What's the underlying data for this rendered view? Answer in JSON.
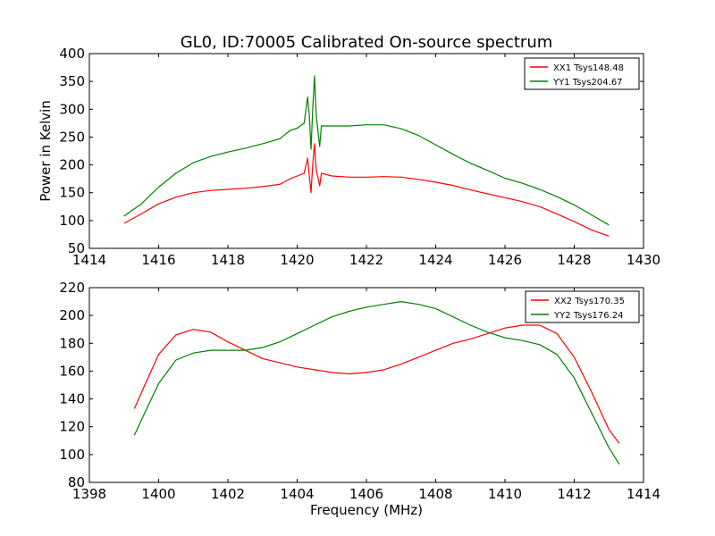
{
  "figure": {
    "title": "GL0, ID:70005 Calibrated On-source spectrum"
  },
  "chart_data": [
    {
      "type": "line",
      "title": "GL0, ID:70005 Calibrated On-source spectrum",
      "xlabel": "",
      "ylabel": "Power in Kelvin",
      "xlim": [
        1414,
        1430
      ],
      "ylim": [
        50,
        400
      ],
      "xticks": [
        1414,
        1416,
        1418,
        1420,
        1422,
        1424,
        1426,
        1428,
        1430
      ],
      "yticks": [
        50,
        100,
        150,
        200,
        250,
        300,
        350,
        400
      ],
      "grid": false,
      "legend_position": "top-right",
      "series": [
        {
          "name": "XX1 Tsys148.48",
          "color": "#ff0000",
          "points": [
            [
              1415.0,
              95
            ],
            [
              1415.5,
              112
            ],
            [
              1416.0,
              130
            ],
            [
              1416.5,
              142
            ],
            [
              1417.0,
              150
            ],
            [
              1417.5,
              154
            ],
            [
              1418.0,
              156
            ],
            [
              1418.5,
              158
            ],
            [
              1419.0,
              161
            ],
            [
              1419.5,
              165
            ],
            [
              1419.8,
              175
            ],
            [
              1420.0,
              180
            ],
            [
              1420.2,
              185
            ],
            [
              1420.3,
              212
            ],
            [
              1420.35,
              180
            ],
            [
              1420.4,
              150
            ],
            [
              1420.45,
              200
            ],
            [
              1420.5,
              238
            ],
            [
              1420.55,
              190
            ],
            [
              1420.6,
              178
            ],
            [
              1420.65,
              162
            ],
            [
              1420.7,
              185
            ],
            [
              1421.0,
              180
            ],
            [
              1421.5,
              178
            ],
            [
              1422.0,
              178
            ],
            [
              1422.5,
              179
            ],
            [
              1423.0,
              178
            ],
            [
              1423.5,
              174
            ],
            [
              1424.0,
              169
            ],
            [
              1424.5,
              163
            ],
            [
              1425.0,
              155
            ],
            [
              1425.5,
              148
            ],
            [
              1426.0,
              141
            ],
            [
              1426.5,
              134
            ],
            [
              1427.0,
              125
            ],
            [
              1427.5,
              112
            ],
            [
              1428.0,
              98
            ],
            [
              1428.5,
              83
            ],
            [
              1429.0,
              72
            ]
          ]
        },
        {
          "name": "YY1 Tsys204.67",
          "color": "#008000",
          "points": [
            [
              1415.0,
              108
            ],
            [
              1415.5,
              130
            ],
            [
              1416.0,
              160
            ],
            [
              1416.5,
              185
            ],
            [
              1417.0,
              204
            ],
            [
              1417.5,
              215
            ],
            [
              1418.0,
              223
            ],
            [
              1418.5,
              230
            ],
            [
              1419.0,
              238
            ],
            [
              1419.5,
              247
            ],
            [
              1419.8,
              262
            ],
            [
              1420.0,
              266
            ],
            [
              1420.2,
              275
            ],
            [
              1420.3,
              322
            ],
            [
              1420.35,
              290
            ],
            [
              1420.4,
              228
            ],
            [
              1420.45,
              300
            ],
            [
              1420.5,
              360
            ],
            [
              1420.55,
              290
            ],
            [
              1420.6,
              262
            ],
            [
              1420.65,
              233
            ],
            [
              1420.7,
              270
            ],
            [
              1421.0,
              270
            ],
            [
              1421.5,
              270
            ],
            [
              1422.0,
              272
            ],
            [
              1422.5,
              272
            ],
            [
              1423.0,
              265
            ],
            [
              1423.5,
              253
            ],
            [
              1424.0,
              236
            ],
            [
              1424.5,
              219
            ],
            [
              1425.0,
              203
            ],
            [
              1425.5,
              190
            ],
            [
              1426.0,
              176
            ],
            [
              1426.5,
              167
            ],
            [
              1427.0,
              156
            ],
            [
              1427.5,
              143
            ],
            [
              1428.0,
              128
            ],
            [
              1428.5,
              110
            ],
            [
              1429.0,
              92
            ]
          ]
        }
      ]
    },
    {
      "type": "line",
      "title": "",
      "xlabel": "Frequency (MHz)",
      "ylabel": "",
      "xlim": [
        1398,
        1414
      ],
      "ylim": [
        80,
        220
      ],
      "xticks": [
        1398,
        1400,
        1402,
        1404,
        1406,
        1408,
        1410,
        1412,
        1414
      ],
      "yticks": [
        80,
        100,
        120,
        140,
        160,
        180,
        200,
        220
      ],
      "grid": false,
      "legend_position": "top-right",
      "series": [
        {
          "name": "XX2 Tsys170.35",
          "color": "#ff0000",
          "points": [
            [
              1399.3,
              133
            ],
            [
              1399.6,
              150
            ],
            [
              1400.0,
              172
            ],
            [
              1400.5,
              186
            ],
            [
              1401.0,
              190
            ],
            [
              1401.5,
              188
            ],
            [
              1402.0,
              181
            ],
            [
              1402.5,
              175
            ],
            [
              1403.0,
              169
            ],
            [
              1403.5,
              166
            ],
            [
              1404.0,
              163
            ],
            [
              1404.5,
              161
            ],
            [
              1405.0,
              159
            ],
            [
              1405.5,
              158
            ],
            [
              1406.0,
              159
            ],
            [
              1406.5,
              161
            ],
            [
              1407.0,
              165
            ],
            [
              1407.5,
              170
            ],
            [
              1408.0,
              175
            ],
            [
              1408.5,
              180
            ],
            [
              1409.0,
              183
            ],
            [
              1409.5,
              187
            ],
            [
              1410.0,
              191
            ],
            [
              1410.5,
              193
            ],
            [
              1411.0,
              193
            ],
            [
              1411.5,
              187
            ],
            [
              1412.0,
              170
            ],
            [
              1412.5,
              145
            ],
            [
              1413.0,
              118
            ],
            [
              1413.3,
              108
            ]
          ]
        },
        {
          "name": "YY2 Tsys176.24",
          "color": "#008000",
          "points": [
            [
              1399.3,
              114
            ],
            [
              1399.6,
              130
            ],
            [
              1400.0,
              151
            ],
            [
              1400.5,
              168
            ],
            [
              1401.0,
              173
            ],
            [
              1401.5,
              175
            ],
            [
              1402.0,
              175
            ],
            [
              1402.5,
              175
            ],
            [
              1403.0,
              177
            ],
            [
              1403.5,
              181
            ],
            [
              1404.0,
              187
            ],
            [
              1404.5,
              193
            ],
            [
              1405.0,
              199
            ],
            [
              1405.5,
              203
            ],
            [
              1406.0,
              206
            ],
            [
              1406.5,
              208
            ],
            [
              1407.0,
              210
            ],
            [
              1407.5,
              208
            ],
            [
              1408.0,
              205
            ],
            [
              1408.5,
              199
            ],
            [
              1409.0,
              193
            ],
            [
              1409.5,
              188
            ],
            [
              1410.0,
              184
            ],
            [
              1410.5,
              182
            ],
            [
              1411.0,
              179
            ],
            [
              1411.5,
              172
            ],
            [
              1412.0,
              155
            ],
            [
              1412.5,
              130
            ],
            [
              1413.0,
              105
            ],
            [
              1413.3,
              93
            ]
          ]
        }
      ]
    }
  ]
}
